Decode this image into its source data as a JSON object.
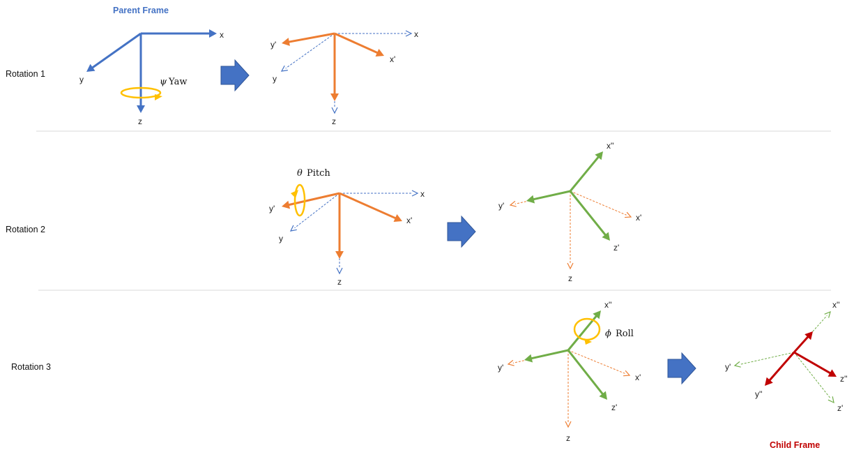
{
  "colors": {
    "parent": "#4472C4",
    "first": "#ED7D31",
    "second": "#70AD47",
    "third": "#C00000",
    "rotation_marker": "#FFC000",
    "separator": "#D9D9D9"
  },
  "parent_frame_label": "Parent Frame",
  "child_frame_label": "Child Frame",
  "rows": [
    {
      "label": "Rotation 1",
      "angle_symbol": "ψ",
      "angle_name": "Yaw"
    },
    {
      "label": "Rotation 2",
      "angle_symbol": "θ",
      "angle_name": "Pitch"
    },
    {
      "label": "Rotation 3",
      "angle_symbol": "ϕ",
      "angle_name": "Roll"
    }
  ],
  "axis_labels": {
    "x": "x",
    "y": "y",
    "z": "z",
    "x1": "x'",
    "y1": "y'",
    "z1": "z'",
    "x2": "x''",
    "y2": "y''",
    "z2": "z''"
  }
}
